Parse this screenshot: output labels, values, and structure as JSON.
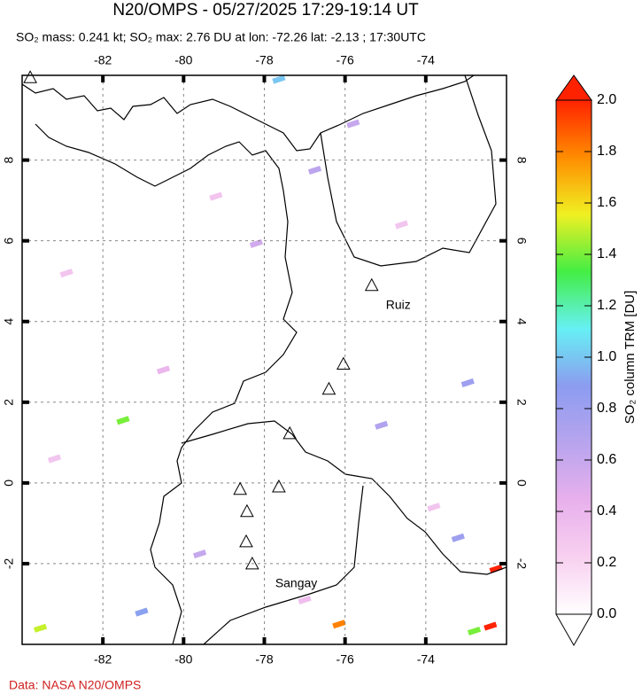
{
  "chart_data": {
    "type": "map",
    "title": "N20/OMPS - 05/27/2025 17:29-19:14 UT",
    "subtitle": "SO₂ mass: 0.241 kt; SO₂ max: 2.76 DU at lon: -72.26 lat: -2.13 ; 17:30UTC",
    "footer": "Data: NASA N20/OMPS",
    "xlim": [
      -84,
      -72
    ],
    "ylim": [
      -4,
      10.1
    ],
    "xticks": [
      -82,
      -80,
      -78,
      -76,
      -74
    ],
    "yticks": [
      -2,
      0,
      2,
      4,
      6,
      8
    ],
    "grid": true,
    "volcanoes": [
      {
        "lon": -83.8,
        "lat": 10.05
      },
      {
        "lon": -75.34,
        "lat": 4.9,
        "name": "Ruiz"
      },
      {
        "lon": -76.04,
        "lat": 2.95
      },
      {
        "lon": -76.4,
        "lat": 2.33
      },
      {
        "lon": -77.37,
        "lat": 1.23
      },
      {
        "lon": -78.6,
        "lat": -0.15
      },
      {
        "lon": -77.64,
        "lat": -0.09
      },
      {
        "lon": -78.43,
        "lat": -0.7
      },
      {
        "lon": -78.45,
        "lat": -1.45
      },
      {
        "lon": -78.3,
        "lat": -2.0,
        "name": "Sangay"
      }
    ],
    "pixels": [
      {
        "lon": -81.5,
        "lat": 1.55,
        "value": 1.4
      },
      {
        "lon": -83.55,
        "lat": -3.6,
        "value": 1.5
      },
      {
        "lon": -81.04,
        "lat": -3.2,
        "value": 0.9
      },
      {
        "lon": -76.15,
        "lat": -3.5,
        "value": 1.8
      },
      {
        "lon": -72.26,
        "lat": -2.13,
        "value": 2.0
      },
      {
        "lon": -72.4,
        "lat": -3.55,
        "value": 2.0
      },
      {
        "lon": -72.8,
        "lat": -3.67,
        "value": 1.4
      },
      {
        "lon": -73.2,
        "lat": -1.36,
        "value": 0.8
      },
      {
        "lon": -72.96,
        "lat": 2.48,
        "value": 0.8
      },
      {
        "lon": -75.1,
        "lat": 1.43,
        "value": 0.7
      },
      {
        "lon": -76.75,
        "lat": 7.75,
        "value": 0.65
      },
      {
        "lon": -77.64,
        "lat": 10.0,
        "value": 1.0
      },
      {
        "lon": -78.2,
        "lat": 5.93,
        "value": 0.55
      },
      {
        "lon": -79.6,
        "lat": -1.76,
        "value": 0.6
      },
      {
        "lon": -75.8,
        "lat": 8.9,
        "value": 0.6
      },
      {
        "lon": -80.5,
        "lat": 2.8,
        "value": 0.4
      },
      {
        "lon": -82.9,
        "lat": 5.2,
        "value": 0.3
      },
      {
        "lon": -74.6,
        "lat": 6.4,
        "value": 0.3
      },
      {
        "lon": -77.0,
        "lat": -2.9,
        "value": 0.35
      },
      {
        "lon": -73.8,
        "lat": -0.6,
        "value": 0.3
      },
      {
        "lon": -79.2,
        "lat": 7.1,
        "value": 0.3
      },
      {
        "lon": -83.2,
        "lat": 0.6,
        "value": 0.3
      }
    ],
    "colorbar": {
      "label": "SO₂ column TRM [DU]",
      "lim": [
        0,
        2
      ],
      "colors": [
        "#ffffff",
        "#f8d0f0",
        "#e8b0ec",
        "#b8a4ee",
        "#8c9cf0",
        "#66f0f4",
        "#44ee44",
        "#f0f022",
        "#ff8c00",
        "#ff2200"
      ],
      "ticks": [
        {
          "value": 0,
          "label": "0.0"
        },
        0.2,
        0.4,
        0.6,
        0.8,
        {
          "value": 1,
          "label": "1.0"
        },
        1.2,
        1.4,
        1.6,
        1.8,
        {
          "value": 2,
          "label": "2.0"
        }
      ]
    }
  }
}
